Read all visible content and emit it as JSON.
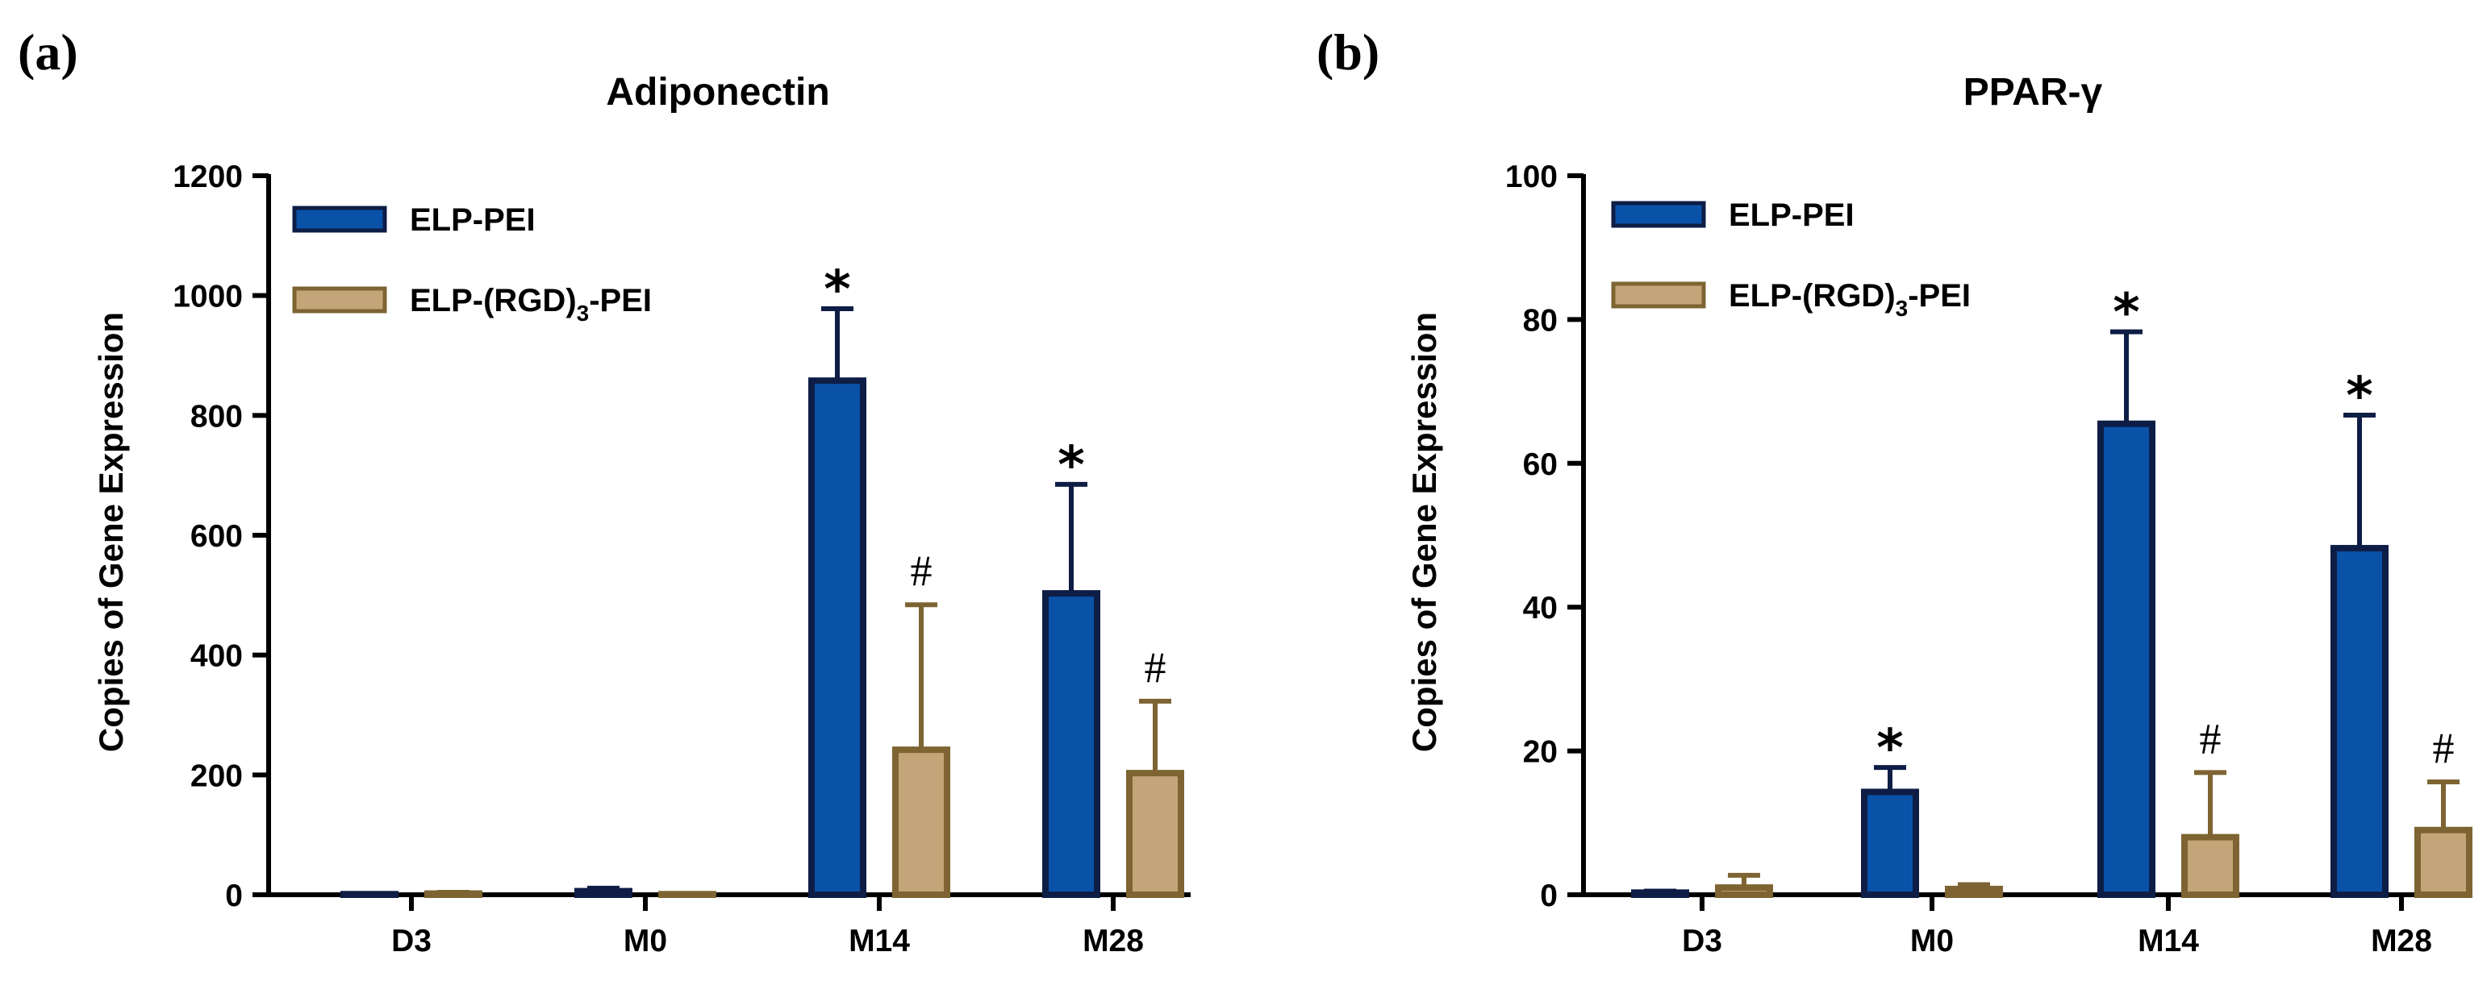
{
  "figure": {
    "panel_labels": [
      "(a)",
      "(b)"
    ]
  },
  "legend": {
    "series_1": "ELP-PEI",
    "series_2_prefix": "ELP-(RGD)",
    "series_2_sub": "3",
    "series_2_suffix": "-PEI"
  },
  "markers": {
    "star": "*",
    "hash": "#"
  },
  "colors": {
    "series_1_fill": "#0A52A8",
    "series_1_stroke": "#0E1D45",
    "series_2_fill": "#C3A579",
    "series_2_stroke": "#7D6432"
  },
  "chart_data": [
    {
      "type": "bar",
      "title": "Adiponectin",
      "ylabel": "Copies of Gene Expression",
      "xlabel": "",
      "ylim": [
        0,
        1200
      ],
      "yticks": [
        0,
        200,
        400,
        600,
        800,
        1000,
        1200
      ],
      "categories": [
        "D3",
        "M0",
        "M14",
        "M28"
      ],
      "legend_position": "top-left",
      "series": [
        {
          "name": "ELP-PEI",
          "values": [
            1,
            6,
            858,
            503
          ],
          "errors": [
            1,
            5,
            120,
            182
          ],
          "marks": [
            "",
            "",
            "*",
            "*"
          ]
        },
        {
          "name": "ELP-(RGD)3-PEI",
          "values": [
            2,
            1,
            242,
            203
          ],
          "errors": [
            2,
            1,
            242,
            120
          ],
          "marks": [
            "",
            "",
            "#",
            "#"
          ]
        }
      ]
    },
    {
      "type": "bar",
      "title": "PPAR-γ",
      "ylabel": "Copies of Gene Expression",
      "xlabel": "",
      "ylim": [
        0,
        100
      ],
      "yticks": [
        0,
        20,
        40,
        60,
        80,
        100
      ],
      "categories": [
        "D3",
        "M0",
        "M14",
        "M28"
      ],
      "legend_position": "top-left",
      "series": [
        {
          "name": "ELP-PEI",
          "values": [
            0.3,
            14.3,
            65.5,
            48.2
          ],
          "errors": [
            0.2,
            3.4,
            12.8,
            18.5
          ],
          "marks": [
            "",
            "*",
            "*",
            "*"
          ]
        },
        {
          "name": "ELP-(RGD)3-PEI",
          "values": [
            1.0,
            0.8,
            8.0,
            9.0
          ],
          "errors": [
            1.7,
            0.6,
            9.0,
            6.7
          ],
          "marks": [
            "",
            "",
            "#",
            "#"
          ]
        }
      ]
    }
  ]
}
